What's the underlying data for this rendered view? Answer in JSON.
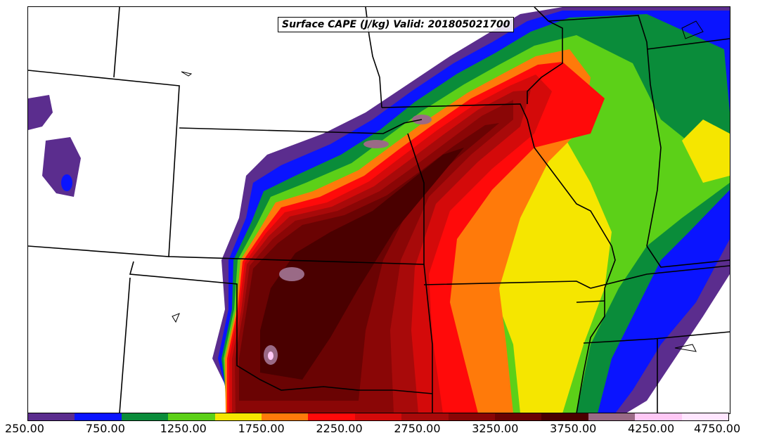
{
  "map": {
    "title": "Surface CAPE (J/kg) Valid: 201805021700",
    "variable": "Surface CAPE",
    "units": "J/kg",
    "valid_time": "201805021700"
  },
  "colorbar": {
    "colors": [
      "#5b2d8e",
      "#0a14ff",
      "#0a8c3a",
      "#5cd018",
      "#f5e600",
      "#ff7a0a",
      "#ff0a0a",
      "#d40a0a",
      "#a80a0a",
      "#8a0606",
      "#6a0303",
      "#4a0000",
      "#9a6a86",
      "#ffc8f5",
      "#ffe6ff"
    ],
    "tick_labels": [
      "250.00",
      "750.00",
      "1250.00",
      "1750.00",
      "2250.00",
      "2750.00",
      "3250.00",
      "3750.00",
      "4250.00",
      "4750.00"
    ]
  }
}
